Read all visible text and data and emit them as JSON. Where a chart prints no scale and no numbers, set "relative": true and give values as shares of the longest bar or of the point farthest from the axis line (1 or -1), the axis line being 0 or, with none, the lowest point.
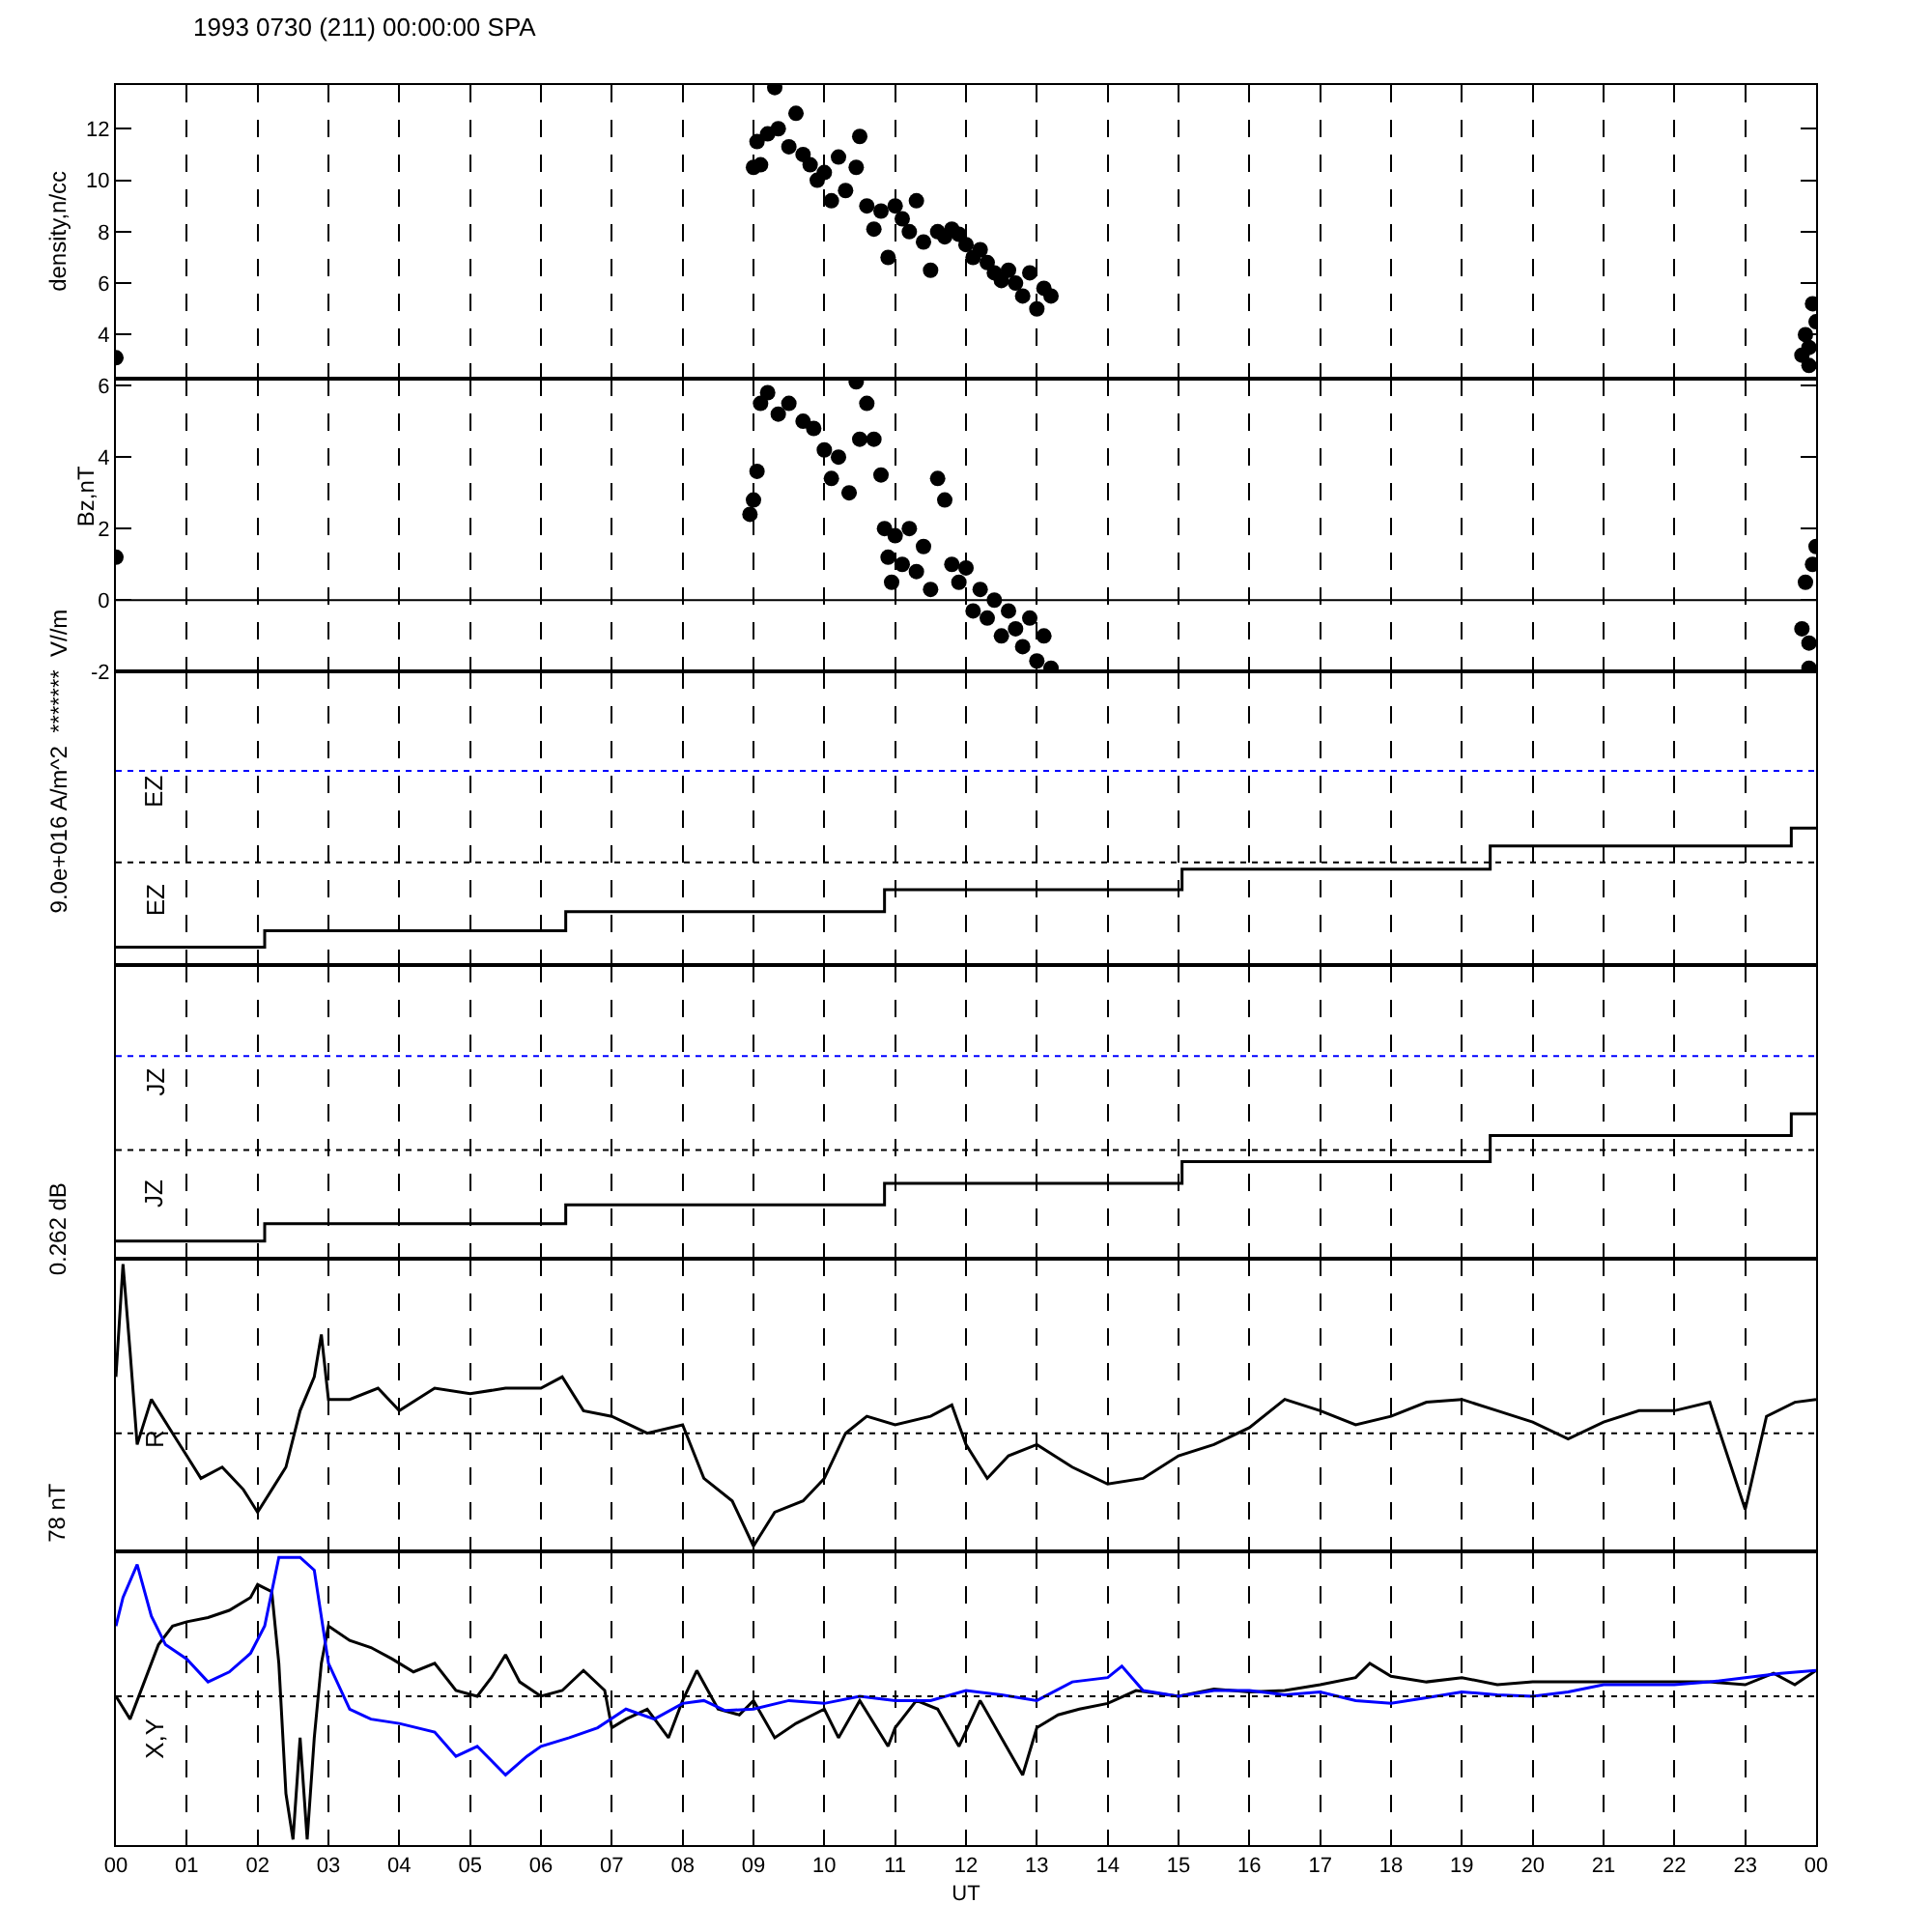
{
  "chart_data": [
    {
      "type": "scatter",
      "title": "1993 0730 (211) 00:00:00 SPA",
      "ylabel": "density,n/cc",
      "marker": "circle",
      "grid": "x",
      "tick_labels": "y",
      "xlim": [
        0,
        24
      ],
      "ylim": [
        2.3,
        13.7
      ],
      "yticks": [
        4,
        6,
        8,
        10,
        12
      ],
      "xticks": [
        {
          "value": 0,
          "label": null
        },
        {
          "value": 1,
          "label": null
        },
        {
          "value": 2,
          "label": null
        },
        {
          "value": 3,
          "label": null
        },
        {
          "value": 4,
          "label": null
        },
        {
          "value": 5,
          "label": null
        },
        {
          "value": 6,
          "label": null
        },
        {
          "value": 7,
          "label": null
        },
        {
          "value": 8,
          "label": null
        },
        {
          "value": 9,
          "label": null
        },
        {
          "value": 10,
          "label": null
        },
        {
          "value": 11,
          "label": null
        },
        {
          "value": 12,
          "label": null
        },
        {
          "value": 13,
          "label": null
        },
        {
          "value": 14,
          "label": null
        },
        {
          "value": 15,
          "label": null
        },
        {
          "value": 16,
          "label": null
        },
        {
          "value": 17,
          "label": null
        },
        {
          "value": 18,
          "label": null
        },
        {
          "value": 19,
          "label": null
        },
        {
          "value": 20,
          "label": null
        },
        {
          "value": 21,
          "label": null
        },
        {
          "value": 22,
          "label": null
        },
        {
          "value": 23,
          "label": null
        },
        {
          "value": 24,
          "label": null
        }
      ],
      "series": [
        {
          "color": "#000000",
          "x": [
            0,
            9.0,
            9.05,
            9.1,
            9.2,
            9.3,
            9.35,
            9.5,
            9.6,
            9.7,
            9.8,
            9.9,
            10.0,
            10.1,
            10.2,
            10.3,
            10.45,
            10.5,
            10.6,
            10.7,
            10.8,
            10.9,
            11.0,
            11.1,
            11.2,
            11.3,
            11.4,
            11.5,
            11.6,
            11.7,
            11.8,
            11.9,
            12.0,
            12.1,
            12.2,
            12.3,
            12.4,
            12.5,
            12.6,
            12.7,
            12.8,
            12.9,
            13.0,
            13.1,
            13.2,
            23.8,
            23.85,
            23.9,
            23.95,
            24.0,
            23.9
          ],
          "values": [
            3.1,
            10.5,
            11.5,
            10.6,
            11.8,
            13.6,
            12.0,
            11.3,
            12.6,
            11.0,
            10.6,
            10.0,
            10.3,
            9.2,
            10.9,
            9.6,
            10.5,
            11.7,
            9.0,
            8.1,
            8.8,
            7.0,
            9.0,
            8.5,
            8.0,
            9.2,
            7.6,
            6.5,
            8.0,
            7.8,
            8.1,
            7.9,
            7.5,
            7.0,
            7.3,
            6.8,
            6.4,
            6.1,
            6.5,
            6.0,
            5.5,
            6.4,
            5.0,
            5.8,
            5.5,
            3.2,
            4.0,
            3.5,
            5.2,
            4.5,
            2.8
          ]
        }
      ]
    },
    {
      "type": "scatter",
      "ylabel": "Bz,nT",
      "marker": "circle",
      "grid": "x",
      "tick_labels": "y",
      "xlim": [
        0,
        24
      ],
      "ylim": [
        -2,
        6.2
      ],
      "yticks": [
        -2,
        0,
        2,
        4,
        6
      ],
      "xticks": [
        {
          "value": 0,
          "label": null
        },
        {
          "value": 1,
          "label": null
        },
        {
          "value": 2,
          "label": null
        },
        {
          "value": 3,
          "label": null
        },
        {
          "value": 4,
          "label": null
        },
        {
          "value": 5,
          "label": null
        },
        {
          "value": 6,
          "label": null
        },
        {
          "value": 7,
          "label": null
        },
        {
          "value": 8,
          "label": null
        },
        {
          "value": 9,
          "label": null
        },
        {
          "value": 10,
          "label": null
        },
        {
          "value": 11,
          "label": null
        },
        {
          "value": 12,
          "label": null
        },
        {
          "value": 13,
          "label": null
        },
        {
          "value": 14,
          "label": null
        },
        {
          "value": 15,
          "label": null
        },
        {
          "value": 16,
          "label": null
        },
        {
          "value": 17,
          "label": null
        },
        {
          "value": 18,
          "label": null
        },
        {
          "value": 19,
          "label": null
        },
        {
          "value": 20,
          "label": null
        },
        {
          "value": 21,
          "label": null
        },
        {
          "value": 22,
          "label": null
        },
        {
          "value": 23,
          "label": null
        },
        {
          "value": 24,
          "label": null
        }
      ],
      "ref_lines": [
        {
          "axis": "y",
          "value": 0,
          "color": "#000000",
          "line_style": "solid"
        }
      ],
      "series": [
        {
          "color": "#000000",
          "x": [
            0,
            8.95,
            9.0,
            9.05,
            9.1,
            9.2,
            9.35,
            9.5,
            9.7,
            9.85,
            10.0,
            10.1,
            10.2,
            10.35,
            10.45,
            10.5,
            10.6,
            10.7,
            10.8,
            10.85,
            10.9,
            10.95,
            11.0,
            11.1,
            11.2,
            11.3,
            11.4,
            11.5,
            11.6,
            11.7,
            11.8,
            11.9,
            12.0,
            12.1,
            12.2,
            12.3,
            12.4,
            12.5,
            12.6,
            12.7,
            12.8,
            12.9,
            13.0,
            13.1,
            13.2,
            23.8,
            23.85,
            23.9,
            23.95,
            24.0,
            23.9
          ],
          "values": [
            1.2,
            2.4,
            2.8,
            3.6,
            5.5,
            5.8,
            5.2,
            5.5,
            5.0,
            4.8,
            4.2,
            3.4,
            4.0,
            3.0,
            6.1,
            4.5,
            5.5,
            4.5,
            3.5,
            2.0,
            1.2,
            0.5,
            1.8,
            1.0,
            2.0,
            0.8,
            1.5,
            0.3,
            3.4,
            2.8,
            1.0,
            0.5,
            0.9,
            -0.3,
            0.3,
            -0.5,
            0.0,
            -1.0,
            -0.3,
            -0.8,
            -1.3,
            -0.5,
            -1.7,
            -1.0,
            -1.9,
            -0.8,
            0.5,
            -1.2,
            1.0,
            1.5,
            -1.9
          ]
        }
      ]
    },
    {
      "type": "line",
      "ylabel": "9.0e+016 A/m^2  *******  V//m",
      "relative": true,
      "marker": "none",
      "line_style": "solid",
      "grid": "x",
      "tick_labels": false,
      "xlim": [
        0,
        24
      ],
      "xticks": [
        {
          "value": 0,
          "label": null
        },
        {
          "value": 1,
          "label": null
        },
        {
          "value": 2,
          "label": null
        },
        {
          "value": 3,
          "label": null
        },
        {
          "value": 4,
          "label": null
        },
        {
          "value": 5,
          "label": null
        },
        {
          "value": 6,
          "label": null
        },
        {
          "value": 7,
          "label": null
        },
        {
          "value": 8,
          "label": null
        },
        {
          "value": 9,
          "label": null
        },
        {
          "value": 10,
          "label": null
        },
        {
          "value": 11,
          "label": null
        },
        {
          "value": 12,
          "label": null
        },
        {
          "value": 13,
          "label": null
        },
        {
          "value": 14,
          "label": null
        },
        {
          "value": 15,
          "label": null
        },
        {
          "value": 16,
          "label": null
        },
        {
          "value": 17,
          "label": null
        },
        {
          "value": 18,
          "label": null
        },
        {
          "value": 19,
          "label": null
        },
        {
          "value": 20,
          "label": null
        },
        {
          "value": 21,
          "label": null
        },
        {
          "value": 22,
          "label": null
        },
        {
          "value": 23,
          "label": null
        },
        {
          "value": 24,
          "label": null
        }
      ],
      "annotations": [
        "EZ",
        "EZ"
      ],
      "ref_lines": [
        {
          "axis": "y",
          "value": 1.42,
          "color": "#0000ff",
          "line_style": "dotted"
        },
        {
          "axis": "y",
          "value": 0.75,
          "color": "#000000",
          "line_style": "dotted"
        }
      ],
      "series": [
        {
          "type": "step",
          "color": "#000000",
          "x": [
            0,
            2.1,
            6.35,
            10.85,
            15.05,
            19.4,
            23.65,
            24
          ],
          "values": [
            0.13,
            0.25,
            0.39,
            0.55,
            0.7,
            0.87,
            1,
            1
          ]
        }
      ]
    },
    {
      "type": "line",
      "ylabel": "0.262 dB",
      "relative": true,
      "marker": "none",
      "line_style": "solid",
      "grid": "x",
      "tick_labels": false,
      "xlim": [
        0,
        24
      ],
      "xticks": [
        {
          "value": 0,
          "label": null
        },
        {
          "value": 1,
          "label": null
        },
        {
          "value": 2,
          "label": null
        },
        {
          "value": 3,
          "label": null
        },
        {
          "value": 4,
          "label": null
        },
        {
          "value": 5,
          "label": null
        },
        {
          "value": 6,
          "label": null
        },
        {
          "value": 7,
          "label": null
        },
        {
          "value": 8,
          "label": null
        },
        {
          "value": 9,
          "label": null
        },
        {
          "value": 10,
          "label": null
        },
        {
          "value": 11,
          "label": null
        },
        {
          "value": 12,
          "label": null
        },
        {
          "value": 13,
          "label": null
        },
        {
          "value": 14,
          "label": null
        },
        {
          "value": 15,
          "label": null
        },
        {
          "value": 16,
          "label": null
        },
        {
          "value": 17,
          "label": null
        },
        {
          "value": 18,
          "label": null
        },
        {
          "value": 19,
          "label": null
        },
        {
          "value": 20,
          "label": null
        },
        {
          "value": 21,
          "label": null
        },
        {
          "value": 22,
          "label": null
        },
        {
          "value": 23,
          "label": null
        },
        {
          "value": 24,
          "label": null
        }
      ],
      "annotations": [
        "JZ",
        "JZ"
      ],
      "ref_lines": [
        {
          "axis": "y",
          "value": 1.4,
          "color": "#0000ff",
          "line_style": "dotted"
        },
        {
          "axis": "y",
          "value": 0.75,
          "color": "#000000",
          "line_style": "dotted"
        }
      ],
      "series": [
        {
          "type": "step",
          "color": "#000000",
          "x": [
            0,
            2.1,
            6.35,
            10.85,
            15.05,
            19.4,
            23.65,
            24
          ],
          "values": [
            0.12,
            0.24,
            0.37,
            0.52,
            0.67,
            0.85,
            1,
            1
          ]
        }
      ]
    },
    {
      "type": "line",
      "ylabel": "78 nT",
      "relative": true,
      "marker": "none",
      "line_style": "solid",
      "grid": "x",
      "tick_labels": false,
      "xlim": [
        0,
        24
      ],
      "xticks": [
        {
          "value": 0,
          "label": null
        },
        {
          "value": 1,
          "label": null
        },
        {
          "value": 2,
          "label": null
        },
        {
          "value": 3,
          "label": null
        },
        {
          "value": 4,
          "label": null
        },
        {
          "value": 5,
          "label": null
        },
        {
          "value": 6,
          "label": null
        },
        {
          "value": 7,
          "label": null
        },
        {
          "value": 8,
          "label": null
        },
        {
          "value": 9,
          "label": null
        },
        {
          "value": 10,
          "label": null
        },
        {
          "value": 11,
          "label": null
        },
        {
          "value": 12,
          "label": null
        },
        {
          "value": 13,
          "label": null
        },
        {
          "value": 14,
          "label": null
        },
        {
          "value": 15,
          "label": null
        },
        {
          "value": 16,
          "label": null
        },
        {
          "value": 17,
          "label": null
        },
        {
          "value": 18,
          "label": null
        },
        {
          "value": 19,
          "label": null
        },
        {
          "value": 20,
          "label": null
        },
        {
          "value": 21,
          "label": null
        },
        {
          "value": 22,
          "label": null
        },
        {
          "value": 23,
          "label": null
        },
        {
          "value": 24,
          "label": null
        }
      ],
      "annotations": [
        "R"
      ],
      "ref_lines": [
        {
          "axis": "y",
          "value": 0.4,
          "color": "#000000",
          "line_style": "dotted"
        }
      ],
      "series": [
        {
          "color": "#000000",
          "x": [
            0.0,
            0.1,
            0.2,
            0.3,
            0.5,
            0.8,
            1.0,
            1.2,
            1.5,
            1.8,
            2.0,
            2.2,
            2.4,
            2.6,
            2.8,
            2.9,
            3.0,
            3.3,
            3.7,
            4.0,
            4.5,
            5.0,
            5.5,
            6.0,
            6.3,
            6.6,
            7.0,
            7.5,
            8.0,
            8.3,
            8.7,
            9.0,
            9.3,
            9.7,
            10.0,
            10.3,
            10.6,
            11.0,
            11.5,
            11.8,
            12.0,
            12.3,
            12.6,
            13.0,
            13.5,
            14.0,
            14.5,
            15.0,
            15.5,
            16.0,
            16.5,
            17.0,
            17.5,
            18.0,
            18.5,
            19.0,
            19.5,
            20.0,
            20.5,
            21.0,
            21.5,
            22.0,
            22.5,
            23.0,
            23.3,
            23.7,
            24.0
          ],
          "values": [
            0.6,
            1,
            0.69,
            0.36,
            0.52,
            0.4,
            0.32,
            0.24,
            0.28,
            0.2,
            0.12,
            0.2,
            0.28,
            0.48,
            0.6,
            0.75,
            0.52,
            0.52,
            0.56,
            0.48,
            0.56,
            0.54,
            0.56,
            0.56,
            0.6,
            0.48,
            0.46,
            0.4,
            0.43,
            0.24,
            0.16,
            0,
            0.12,
            0.16,
            0.24,
            0.4,
            0.46,
            0.43,
            0.46,
            0.5,
            0.36,
            0.24,
            0.32,
            0.36,
            0.28,
            0.22,
            0.24,
            0.32,
            0.36,
            0.42,
            0.52,
            0.48,
            0.43,
            0.46,
            0.51,
            0.52,
            0.48,
            0.44,
            0.38,
            0.44,
            0.48,
            0.48,
            0.51,
            0.13,
            0.46,
            0.51,
            0.52
          ]
        }
      ]
    },
    {
      "type": "line",
      "xlabel": "UT",
      "relative": true,
      "marker": "none",
      "line_style": "solid",
      "grid": "x",
      "tick_labels": "x",
      "xlim": [
        0,
        24
      ],
      "xticks": [
        {
          "value": 0,
          "label": "00"
        },
        {
          "value": 1,
          "label": "01"
        },
        {
          "value": 2,
          "label": "02"
        },
        {
          "value": 3,
          "label": "03"
        },
        {
          "value": 4,
          "label": "04"
        },
        {
          "value": 5,
          "label": "05"
        },
        {
          "value": 6,
          "label": "06"
        },
        {
          "value": 7,
          "label": "07"
        },
        {
          "value": 8,
          "label": "08"
        },
        {
          "value": 9,
          "label": "09"
        },
        {
          "value": 10,
          "label": "10"
        },
        {
          "value": 11,
          "label": "11"
        },
        {
          "value": 12,
          "label": "12"
        },
        {
          "value": 13,
          "label": "13"
        },
        {
          "value": 14,
          "label": "14"
        },
        {
          "value": 15,
          "label": "15"
        },
        {
          "value": 16,
          "label": "16"
        },
        {
          "value": 17,
          "label": "17"
        },
        {
          "value": 18,
          "label": "18"
        },
        {
          "value": 19,
          "label": "19"
        },
        {
          "value": 20,
          "label": "20"
        },
        {
          "value": 21,
          "label": "21"
        },
        {
          "value": 22,
          "label": "22"
        },
        {
          "value": 23,
          "label": "23"
        },
        {
          "value": 24,
          "label": "00"
        }
      ],
      "annotations": [
        "X,Y"
      ],
      "ref_lines": [
        {
          "axis": "y",
          "value": 0,
          "color": "#000000",
          "line_style": "dotted"
        }
      ],
      "series": [
        {
          "color": "#000000",
          "x": [
            0.0,
            0.2,
            0.4,
            0.6,
            0.8,
            1.0,
            1.3,
            1.6,
            1.9,
            2.0,
            2.2,
            2.3,
            2.4,
            2.5,
            2.6,
            2.7,
            2.8,
            2.9,
            3.0,
            3.3,
            3.6,
            3.9,
            4.2,
            4.5,
            4.8,
            5.1,
            5.3,
            5.5,
            5.7,
            6.0,
            6.3,
            6.6,
            6.9,
            7.0,
            7.2,
            7.5,
            7.8,
            8.0,
            8.2,
            8.5,
            8.8,
            9.0,
            9.3,
            9.6,
            10.0,
            10.2,
            10.5,
            10.9,
            11.0,
            11.3,
            11.6,
            11.9,
            12.2,
            12.5,
            12.8,
            13.0,
            13.3,
            13.6,
            14.0,
            14.4,
            15.0,
            15.5,
            16.0,
            16.5,
            17.0,
            17.5,
            17.7,
            18.0,
            18.5,
            19.0,
            19.5,
            20.0,
            20.5,
            21.0,
            21.5,
            22.0,
            22.5,
            23.0,
            23.4,
            23.7,
            24.0
          ],
          "values": [
            0,
            -0.16,
            0.1,
            0.36,
            0.49,
            0.52,
            0.55,
            0.6,
            0.69,
            0.78,
            0.73,
            0.23,
            -0.68,
            -1,
            -0.29,
            -1,
            -0.29,
            0.23,
            0.49,
            0.39,
            0.34,
            0.26,
            0.17,
            0.23,
            0.04,
            0,
            0.13,
            0.29,
            0.1,
            0,
            0.04,
            0.18,
            0.04,
            -0.22,
            -0.16,
            -0.09,
            -0.29,
            -0.03,
            0.18,
            -0.09,
            -0.13,
            -0.03,
            -0.29,
            -0.19,
            -0.09,
            -0.29,
            -0.03,
            -0.35,
            -0.22,
            -0.03,
            -0.09,
            -0.35,
            -0.03,
            -0.29,
            -0.55,
            -0.22,
            -0.13,
            -0.09,
            -0.05,
            0.04,
            0,
            0.05,
            0.03,
            0.04,
            0.08,
            0.13,
            0.23,
            0.14,
            0.1,
            0.13,
            0.08,
            0.1,
            0.1,
            0.1,
            0.1,
            0.1,
            0.1,
            0.08,
            0.16,
            0.08,
            0.18
          ]
        },
        {
          "color": "#0000ff",
          "x": [
            0.0,
            0.1,
            0.3,
            0.5,
            0.7,
            1.0,
            1.3,
            1.6,
            1.9,
            2.1,
            2.3,
            2.6,
            2.8,
            3.0,
            3.3,
            3.6,
            4.0,
            4.5,
            4.8,
            5.1,
            5.5,
            5.8,
            6.0,
            6.4,
            6.8,
            7.2,
            7.6,
            8.0,
            8.3,
            8.6,
            9.0,
            9.5,
            10.0,
            10.5,
            11.0,
            11.5,
            12.0,
            12.5,
            13.0,
            13.5,
            14.0,
            14.2,
            14.5,
            15.0,
            15.5,
            16.0,
            16.5,
            17.0,
            17.5,
            18.0,
            18.5,
            19.0,
            19.5,
            20.0,
            20.5,
            21.0,
            21.5,
            22.0,
            22.5,
            23.0,
            23.5,
            24.0
          ],
          "values": [
            0.49,
            0.69,
            0.92,
            0.56,
            0.36,
            0.26,
            0.1,
            0.17,
            0.3,
            0.49,
            0.97,
            0.97,
            0.88,
            0.23,
            -0.09,
            -0.16,
            -0.19,
            -0.25,
            -0.42,
            -0.35,
            -0.55,
            -0.42,
            -0.35,
            -0.29,
            -0.22,
            -0.09,
            -0.16,
            -0.05,
            -0.03,
            -0.1,
            -0.09,
            -0.03,
            -0.05,
            0,
            -0.03,
            -0.03,
            0.04,
            0.01,
            -0.03,
            0.1,
            0.13,
            0.21,
            0.04,
            0,
            0.04,
            0.04,
            0.01,
            0.03,
            -0.03,
            -0.05,
            -0.01,
            0.03,
            0.01,
            0,
            0.03,
            0.08,
            0.08,
            0.08,
            0.1,
            0.13,
            0.16,
            0.18
          ]
        }
      ]
    }
  ]
}
